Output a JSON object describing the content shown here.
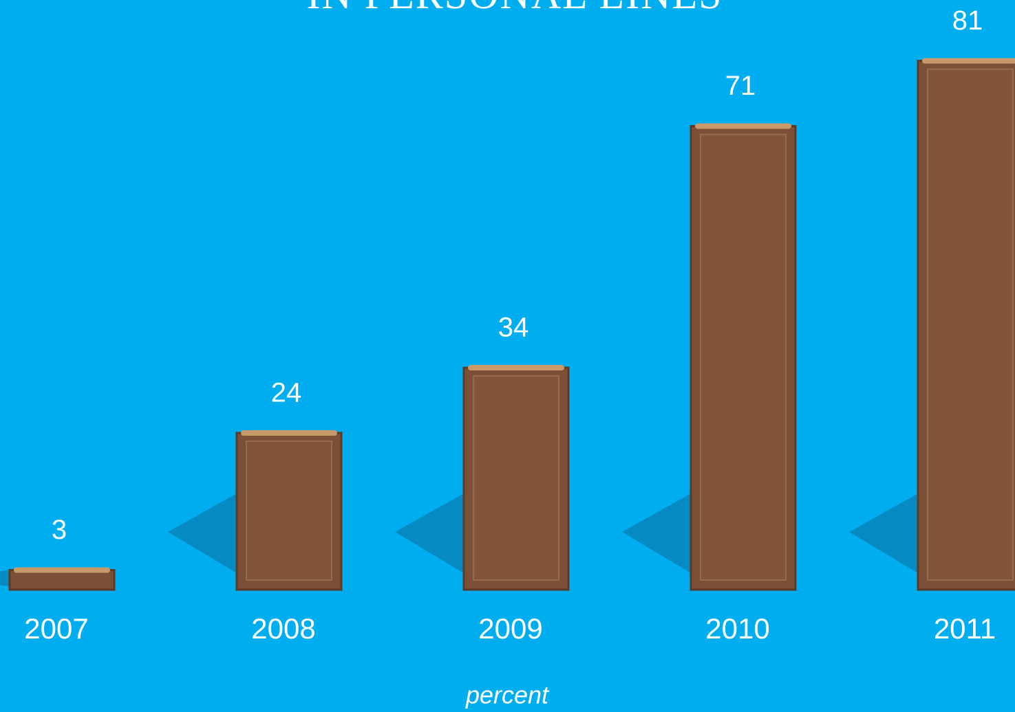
{
  "chart_data": {
    "type": "bar",
    "title": "IN PERSONAL LINES",
    "x_label": "percent",
    "categories": [
      "2007",
      "2008",
      "2009",
      "2010",
      "2011"
    ],
    "values": [
      3,
      24,
      34,
      71,
      81
    ],
    "color": "#7b5037"
  }
}
